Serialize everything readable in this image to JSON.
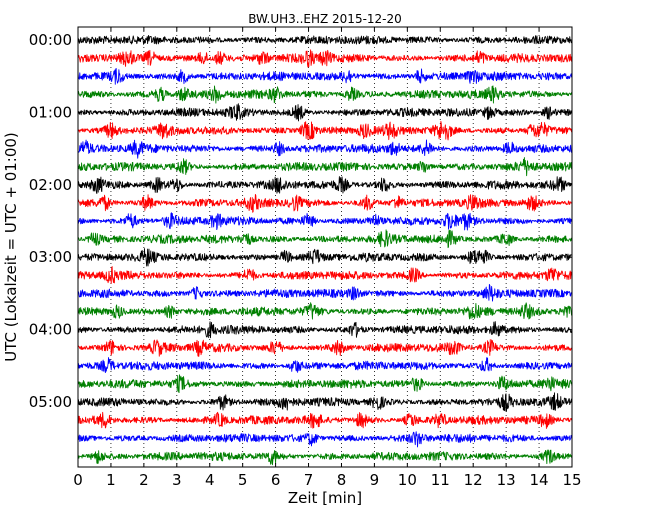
{
  "chart_data": {
    "type": "line",
    "subtype": "seismogram dayplot",
    "title": "BW.UH3..EHZ 2015-12-20",
    "xlabel": "Zeit  [min]",
    "ylabel": "UTC (Lokalzeit = UTC + 01:00)",
    "xlim": [
      0,
      15
    ],
    "x_ticks": [
      "0",
      "1",
      "2",
      "3",
      "4",
      "5",
      "6",
      "7",
      "8",
      "9",
      "10",
      "11",
      "12",
      "13",
      "14",
      "15"
    ],
    "y_ticks": [
      "00:00",
      "01:00",
      "02:00",
      "03:00",
      "04:00",
      "05:00"
    ],
    "grid": "vertical dotted at each minute",
    "trace_interval_minutes": 15,
    "trace_colors": [
      "#000000",
      "#ff0000",
      "#0000ff",
      "#008000"
    ],
    "traces": [
      {
        "start": "00:00",
        "color": "#000000",
        "events": []
      },
      {
        "start": "00:15",
        "color": "#ff0000",
        "events": [
          1.5,
          2.2,
          3.8,
          4.3,
          5.6,
          7.0,
          7.5,
          12.2
        ]
      },
      {
        "start": "00:30",
        "color": "#0000ff",
        "events": [
          1.2,
          3.2,
          8.2,
          10.4,
          12.0
        ]
      },
      {
        "start": "00:45",
        "color": "#008000",
        "events": [
          2.5,
          3.2,
          4.2,
          6.0,
          8.3,
          12.6
        ]
      },
      {
        "start": "01:00",
        "color": "#000000",
        "events": [
          4.8,
          6.7,
          12.5,
          14.3
        ]
      },
      {
        "start": "01:15",
        "color": "#ff0000",
        "events": [
          1.0,
          2.6,
          6.9,
          7.1,
          8.7,
          9.5,
          11.0,
          11.2,
          13.8,
          14.1
        ]
      },
      {
        "start": "01:30",
        "color": "#0000ff",
        "events": [
          0.2,
          1.8,
          6.1,
          9.6,
          10.6,
          13.1
        ]
      },
      {
        "start": "01:45",
        "color": "#008000",
        "events": [
          3.2,
          10.5,
          13.6
        ]
      },
      {
        "start": "02:00",
        "color": "#000000",
        "events": [
          0.6,
          2.4,
          3.0,
          6.1,
          8.0,
          9.3,
          14.6
        ]
      },
      {
        "start": "02:15",
        "color": "#ff0000",
        "events": [
          0.8,
          2.1,
          5.3,
          6.6,
          8.8,
          9.7,
          12.0,
          13.8
        ]
      },
      {
        "start": "02:30",
        "color": "#0000ff",
        "events": [
          1.6,
          2.8,
          4.2,
          7.0,
          9.0,
          11.3,
          11.8
        ]
      },
      {
        "start": "02:45",
        "color": "#008000",
        "events": [
          0.5,
          5.1,
          9.3,
          11.3,
          13.0
        ]
      },
      {
        "start": "03:00",
        "color": "#000000",
        "events": [
          2.1,
          6.3,
          7.2,
          12.0,
          12.3
        ]
      },
      {
        "start": "03:15",
        "color": "#ff0000",
        "events": [
          1.0,
          5.2,
          10.2,
          14.4
        ]
      },
      {
        "start": "03:30",
        "color": "#0000ff",
        "events": [
          3.6,
          8.4,
          12.5
        ]
      },
      {
        "start": "03:45",
        "color": "#008000",
        "events": [
          1.2,
          2.8,
          7.1,
          12.0,
          13.6,
          14.8
        ]
      },
      {
        "start": "04:00",
        "color": "#000000",
        "events": [
          4.0,
          8.4,
          12.7
        ]
      },
      {
        "start": "04:15",
        "color": "#ff0000",
        "events": [
          1.0,
          2.4,
          3.7,
          6.0,
          7.9,
          11.4,
          12.5
        ]
      },
      {
        "start": "04:30",
        "color": "#0000ff",
        "events": [
          0.9,
          6.6,
          12.4
        ]
      },
      {
        "start": "04:45",
        "color": "#008000",
        "events": [
          3.1,
          10.3,
          12.9,
          14.3
        ]
      },
      {
        "start": "05:00",
        "color": "#000000",
        "events": [
          4.4,
          6.3,
          9.1,
          13.0,
          14.5
        ]
      },
      {
        "start": "05:15",
        "color": "#ff0000",
        "events": [
          0.8,
          4.3,
          7.2,
          8.6,
          10.1,
          11.0,
          14.2
        ]
      },
      {
        "start": "05:30",
        "color": "#0000ff",
        "events": [
          7.1,
          10.3
        ]
      },
      {
        "start": "05:45",
        "color": "#008000",
        "events": [
          0.6,
          5.9,
          14.3
        ]
      }
    ]
  }
}
